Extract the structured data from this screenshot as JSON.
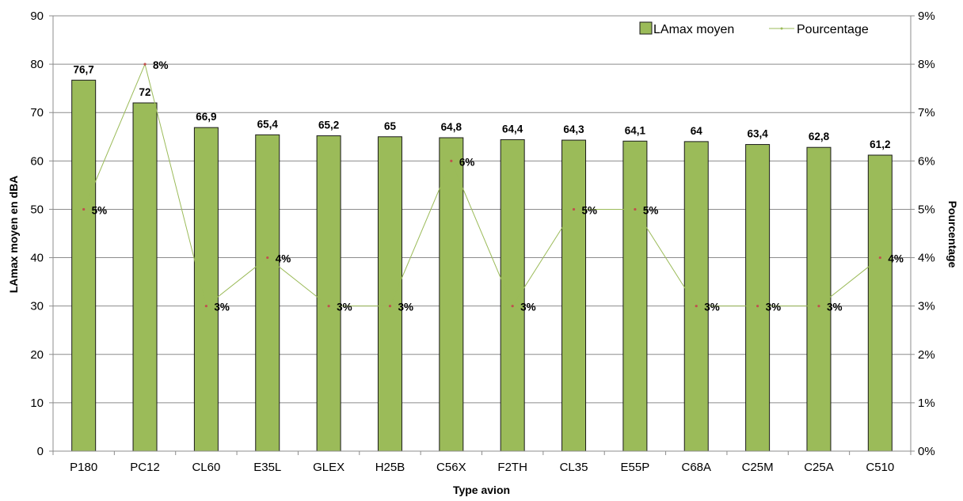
{
  "chart_data": {
    "type": "bar",
    "categories": [
      "P180",
      "PC12",
      "CL60",
      "E35L",
      "GLEX",
      "H25B",
      "C56X",
      "F2TH",
      "CL35",
      "E55P",
      "C68A",
      "C25M",
      "C25A",
      "C510"
    ],
    "series": [
      {
        "name": "LAmax moyen",
        "type": "bar",
        "axis": "left",
        "values": [
          76.7,
          72,
          66.9,
          65.4,
          65.2,
          65,
          64.8,
          64.4,
          64.3,
          64.1,
          64,
          63.4,
          62.8,
          61.2
        ],
        "data_labels": [
          "76,7",
          "72",
          "66,9",
          "65,4",
          "65,2",
          "65",
          "64,8",
          "64,4",
          "64,3",
          "64,1",
          "64",
          "63,4",
          "62,8",
          "61,2"
        ]
      },
      {
        "name": "Pourcentage",
        "type": "line",
        "axis": "right",
        "values": [
          0.05,
          0.08,
          0.03,
          0.04,
          0.03,
          0.03,
          0.06,
          0.03,
          0.05,
          0.05,
          0.03,
          0.03,
          0.03,
          0.04
        ],
        "data_labels": [
          "5%",
          "8%",
          "3%",
          "4%",
          "3%",
          "3%",
          "6%",
          "3%",
          "5%",
          "5%",
          "3%",
          "3%",
          "3%",
          "4%"
        ]
      }
    ],
    "xlabel": "Type avion",
    "ylabel": "LAmax moyen en dBA",
    "y2label": "Pourcentage",
    "ylim": [
      0,
      90
    ],
    "y2lim": [
      0,
      0.09
    ],
    "yticks": [
      "0",
      "10",
      "20",
      "30",
      "40",
      "50",
      "60",
      "70",
      "80",
      "90"
    ],
    "y2ticks": [
      "0%",
      "1%",
      "2%",
      "3%",
      "4%",
      "5%",
      "6%",
      "7%",
      "8%",
      "9%"
    ],
    "grid": true,
    "legend": "top-right",
    "colors": {
      "bar_fill": "#9bbb59",
      "bar_stroke": "#1a1a1a",
      "line": "#9bbb59",
      "grid": "#8c8c8c",
      "marker": "#c0504d"
    }
  }
}
